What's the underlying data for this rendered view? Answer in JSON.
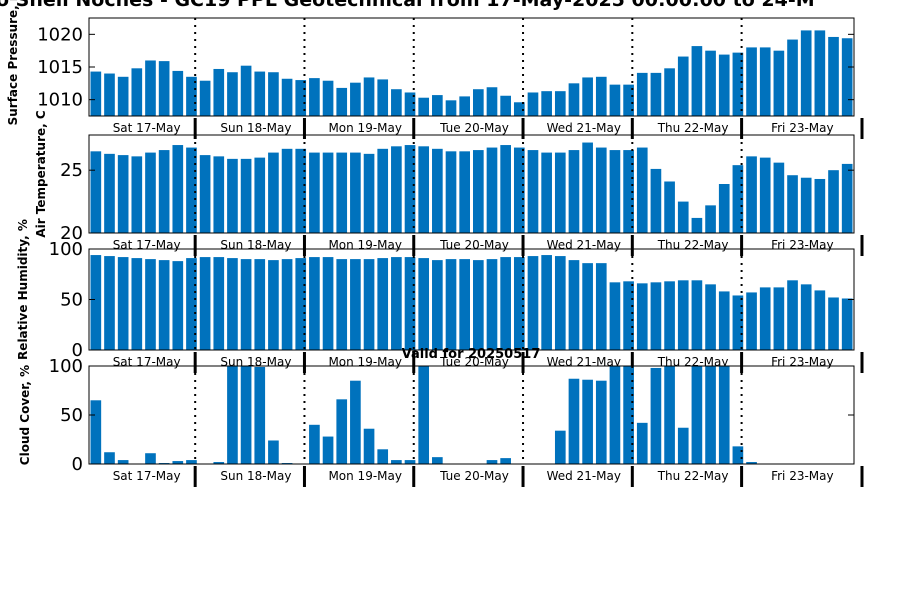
{
  "figure": {
    "title": "o Shell Noches - GC19 PPL Geotechnical from 17-May-2025 00:00:00 to 24-M",
    "subtitle": "Valid for 20250517"
  },
  "colors": {
    "bar": "#0072BD",
    "axis": "#000000"
  },
  "chart_data": [
    {
      "type": "bar",
      "ylabel": "Surface Pressure, m",
      "ylim": [
        1007.5,
        1022.5
      ],
      "yticks": [
        1010,
        1015,
        1020
      ],
      "days": [
        "Sat 17-May",
        "Sun 18-May",
        "Mon 19-May",
        "Tue 20-May",
        "Wed 21-May",
        "Thu 22-May",
        "Fri 23-May"
      ],
      "values": [
        1014.3,
        1014.0,
        1013.5,
        1014.8,
        1016.0,
        1015.9,
        1014.4,
        1013.5,
        1012.9,
        1014.7,
        1014.2,
        1015.2,
        1014.3,
        1014.2,
        1013.2,
        1013.0,
        1013.3,
        1012.9,
        1011.8,
        1012.6,
        1013.4,
        1013.1,
        1011.6,
        1011.1,
        1010.3,
        1010.7,
        1009.9,
        1010.5,
        1011.6,
        1011.9,
        1010.6,
        1009.6,
        1011.1,
        1011.3,
        1011.3,
        1012.5,
        1013.4,
        1013.5,
        1012.3,
        1012.3,
        1014.1,
        1014.1,
        1014.8,
        1016.6,
        1018.2,
        1017.5,
        1016.9,
        1017.2,
        1018.0,
        1018.0,
        1017.5,
        1019.2,
        1020.6,
        1020.6,
        1019.6,
        1019.4
      ]
    },
    {
      "type": "bar",
      "ylabel": "Air Temperature, C",
      "ylim": [
        20,
        27.8
      ],
      "yticks": [
        20,
        25
      ],
      "days": [
        "Sat 17-May",
        "Sun 18-May",
        "Mon 19-May",
        "Tue 20-May",
        "Wed 21-May",
        "Thu 22-May",
        "Fri 23-May"
      ],
      "values": [
        26.5,
        26.3,
        26.2,
        26.1,
        26.4,
        26.6,
        27.0,
        26.8,
        26.2,
        26.1,
        25.9,
        25.9,
        26.0,
        26.4,
        26.7,
        26.7,
        26.4,
        26.4,
        26.4,
        26.4,
        26.3,
        26.7,
        26.9,
        27.0,
        26.9,
        26.7,
        26.5,
        26.5,
        26.6,
        26.8,
        27.0,
        26.8,
        26.6,
        26.4,
        26.4,
        26.6,
        27.2,
        26.8,
        26.6,
        26.6,
        26.8,
        25.1,
        24.1,
        22.5,
        21.2,
        22.2,
        23.9,
        25.4,
        26.1,
        26.0,
        25.6,
        24.6,
        24.4,
        24.3,
        25.0,
        25.5
      ]
    },
    {
      "type": "bar",
      "ylabel": "Relative Humidity, %",
      "ylim": [
        0,
        100
      ],
      "yticks": [
        0,
        50,
        100
      ],
      "days": [
        "Sat 17-May",
        "Sun 18-May",
        "Mon 19-May",
        "Tue 20-May",
        "Wed 21-May",
        "Thu 22-May",
        "Fri 23-May"
      ],
      "values": [
        94,
        93,
        92,
        91,
        90,
        89,
        88,
        91,
        92,
        92,
        91,
        90,
        90,
        89,
        90,
        91,
        92,
        92,
        90,
        90,
        90,
        91,
        92,
        92,
        91,
        89,
        90,
        90,
        89,
        90,
        92,
        92,
        93,
        94,
        93,
        89,
        86,
        86,
        67,
        68,
        66,
        67,
        68,
        69,
        69,
        65,
        58,
        54,
        57,
        62,
        62,
        69,
        65,
        59,
        52,
        51
      ]
    },
    {
      "type": "bar",
      "ylabel": "Cloud Cover, %",
      "ylim": [
        0,
        100
      ],
      "yticks": [
        0,
        50,
        100
      ],
      "days": [
        "Sat 17-May",
        "Sun 18-May",
        "Mon 19-May",
        "Tue 20-May",
        "Wed 21-May",
        "Thu 22-May",
        "Fri 23-May"
      ],
      "values": [
        65,
        12,
        4,
        0,
        11,
        1,
        3,
        4,
        0,
        2,
        100,
        100,
        99,
        24,
        1,
        0,
        40,
        28,
        66,
        85,
        36,
        15,
        4,
        4,
        100,
        7,
        0,
        0,
        0,
        4,
        6,
        0,
        0,
        0,
        34,
        87,
        86,
        85,
        100,
        100,
        42,
        98,
        100,
        37,
        100,
        100,
        100,
        18,
        2,
        0,
        0,
        0,
        0,
        0,
        0,
        0
      ]
    }
  ]
}
